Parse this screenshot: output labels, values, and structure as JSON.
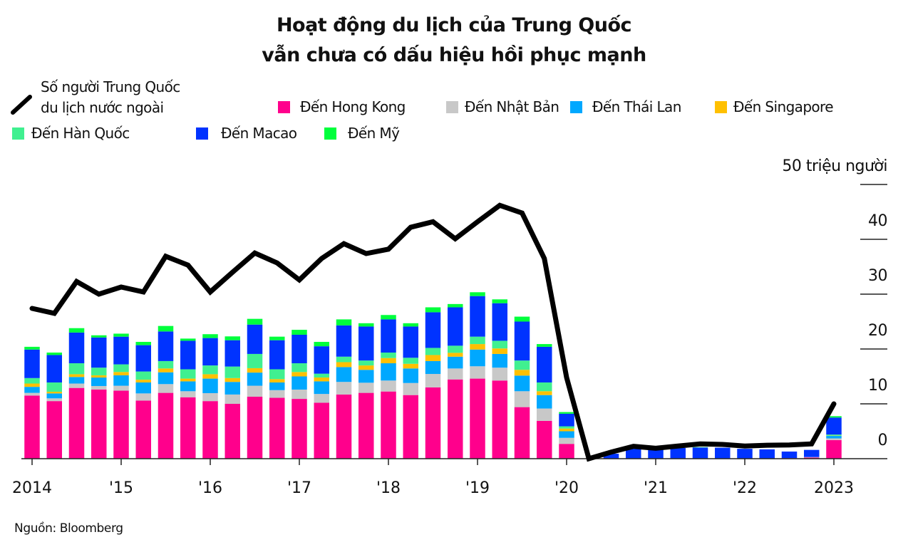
{
  "title": [
    "Hoạt động du lịch của Trung Quốc",
    "vẫn chưa có dấu hiệu hồi phục mạnh"
  ],
  "source": "Nguồn: Bloomberg",
  "chart_data": {
    "type": "bar+line",
    "stacked": true,
    "title": "Hoạt động du lịch của Trung Quốc vẫn chưa có dấu hiệu hồi phục mạnh",
    "ylabel": "50 triệu người",
    "ylim": [
      0,
      50
    ],
    "yticks": [
      0,
      10,
      20,
      30,
      40,
      50
    ],
    "ytick_labels": [
      "0",
      "10",
      "20",
      "30",
      "40",
      "50 triệu người"
    ],
    "xtick_labels": [
      "2014",
      "'15",
      "'16",
      "'17",
      "'18",
      "'19",
      "'20",
      "'21",
      "'22",
      "2023"
    ],
    "x": [
      "2014-Q1",
      "2014-Q2",
      "2014-Q3",
      "2014-Q4",
      "2015-Q1",
      "2015-Q2",
      "2015-Q3",
      "2015-Q4",
      "2016-Q1",
      "2016-Q2",
      "2016-Q3",
      "2016-Q4",
      "2017-Q1",
      "2017-Q2",
      "2017-Q3",
      "2017-Q4",
      "2018-Q1",
      "2018-Q2",
      "2018-Q3",
      "2018-Q4",
      "2019-Q1",
      "2019-Q2",
      "2019-Q3",
      "2019-Q4",
      "2020-Q1",
      "2020-Q2",
      "2020-Q3",
      "2020-Q4",
      "2021-Q1",
      "2021-Q2",
      "2021-Q3",
      "2021-Q4",
      "2022-Q1",
      "2022-Q2",
      "2022-Q3",
      "2022-Q4",
      "2023-Q1"
    ],
    "grid": false,
    "legend_placement": "top",
    "line": {
      "name": "Số người Trung Quốc du lịch nước ngoài",
      "name_lines": [
        "Số người Trung Quốc",
        "du lịch nước ngoài"
      ],
      "color": "#000000",
      "values": [
        27.4,
        26.5,
        32.3,
        30,
        31.3,
        30.4,
        36.9,
        35.3,
        30.4,
        34,
        37.5,
        35.7,
        32.6,
        36.5,
        39.2,
        37.4,
        38.2,
        42.2,
        43.2,
        40.1,
        43.2,
        46.2,
        44.8,
        36.5,
        14.8,
        0,
        1.2,
        2.25,
        1.9,
        2.3,
        2.7,
        2.6,
        2.3,
        2.45,
        2.5,
        2.7,
        10.0
      ]
    },
    "series": [
      {
        "name": "Đến Hong Kong",
        "color": "#ff008c",
        "values": [
          11.5,
          10.5,
          12.9,
          12.6,
          12.4,
          10.6,
          12.0,
          11.2,
          10.5,
          10.0,
          11.3,
          11.1,
          10.9,
          10.2,
          11.7,
          12.0,
          12.25,
          11.6,
          13.0,
          14.45,
          14.6,
          14.25,
          9.4,
          6.9,
          2.7,
          0,
          0,
          0,
          0,
          0,
          0,
          0,
          0,
          0,
          0.1,
          0.2,
          3.4
        ]
      },
      {
        "name": "Đến Nhật Bản",
        "color": "#c8c8c8",
        "values": [
          0.5,
          0.5,
          0.8,
          0.65,
          0.9,
          1.3,
          1.6,
          1.1,
          1.45,
          1.7,
          2.0,
          1.4,
          1.7,
          1.6,
          2.3,
          1.85,
          2.0,
          2.2,
          2.45,
          2.0,
          2.25,
          2.35,
          2.9,
          2.25,
          1.1,
          0,
          0,
          0,
          0,
          0,
          0,
          0,
          0,
          0,
          0,
          0.1,
          0.3
        ]
      },
      {
        "name": "Đến Thái Lan",
        "color": "#00a8ff",
        "values": [
          1.1,
          0.9,
          1.2,
          1.55,
          1.9,
          2.0,
          2.15,
          1.8,
          2.65,
          2.3,
          2.4,
          1.4,
          2.4,
          2.3,
          2.7,
          2.35,
          3.15,
          2.65,
          2.35,
          2.15,
          3.05,
          2.5,
          2.85,
          2.45,
          1.2,
          0,
          0,
          0,
          0,
          0,
          0,
          0,
          0,
          0,
          0,
          0,
          0.45
        ]
      },
      {
        "name": "Đến Singapore",
        "color": "#ffc000",
        "values": [
          0.6,
          0.3,
          0.5,
          0.4,
          0.6,
          0.5,
          0.7,
          0.5,
          0.8,
          0.7,
          0.8,
          0.6,
          0.8,
          0.7,
          0.9,
          0.8,
          0.95,
          0.85,
          1.1,
          0.7,
          1.0,
          1.0,
          1.05,
          0.7,
          0.5,
          0,
          0,
          0,
          0,
          0,
          0,
          0,
          0,
          0,
          0,
          0,
          0.05
        ]
      },
      {
        "name": "Đến Hàn Quốc",
        "color": "#40f090",
        "values": [
          1.0,
          1.7,
          2.0,
          1.4,
          1.4,
          1.5,
          1.35,
          1.7,
          1.6,
          2.1,
          2.6,
          1.8,
          1.6,
          0.7,
          1.0,
          0.9,
          1.0,
          1.1,
          1.3,
          1.3,
          1.35,
          1.4,
          1.7,
          1.6,
          0.4,
          0,
          0,
          0,
          0,
          0,
          0,
          0,
          0,
          0,
          0,
          0,
          0.2
        ]
      },
      {
        "name": "Đến Macao",
        "color": "#0033ff",
        "values": [
          5.2,
          5.0,
          5.6,
          5.5,
          5.05,
          4.8,
          5.4,
          5.2,
          5.0,
          4.8,
          5.35,
          5.3,
          5.2,
          5.0,
          5.7,
          6.2,
          6.05,
          5.7,
          6.5,
          7.0,
          7.4,
          6.85,
          7.1,
          6.5,
          2.3,
          0,
          0.9,
          1.8,
          1.75,
          1.95,
          2.05,
          2.0,
          1.8,
          1.7,
          1.2,
          1.3,
          3.1
        ]
      },
      {
        "name": "Đến Mỹ",
        "color": "#00ff3c",
        "values": [
          0.5,
          0.45,
          0.8,
          0.4,
          0.55,
          0.6,
          1.0,
          0.4,
          0.7,
          0.7,
          1.05,
          0.65,
          0.9,
          0.8,
          1.1,
          0.6,
          0.8,
          0.6,
          0.9,
          0.6,
          0.7,
          0.7,
          0.9,
          0.5,
          0.3,
          0,
          0,
          0,
          0,
          0,
          0.05,
          0,
          0,
          0,
          0,
          0,
          0.25
        ]
      }
    ]
  }
}
